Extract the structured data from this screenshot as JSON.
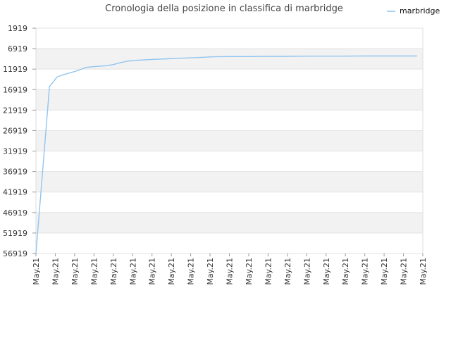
{
  "chart_data": {
    "type": "line",
    "title": "Cronologia della posizione in classifica di marbridge",
    "xlabel": "",
    "ylabel": "",
    "y_inverted": true,
    "ylim": [
      56919,
      1919
    ],
    "y_ticks": [
      "1919",
      "6919",
      "11919",
      "16919",
      "21919",
      "26919",
      "31919",
      "36919",
      "41919",
      "46919",
      "51919",
      "56919"
    ],
    "x_tick_labels": [
      "May.21",
      "May.21",
      "May.21",
      "May.21",
      "May.21",
      "May.21",
      "May.21",
      "May.21",
      "May.21",
      "May.21",
      "May.21",
      "May.21",
      "May.21",
      "May.21",
      "May.21",
      "May.21",
      "May.21",
      "May.21",
      "May.21",
      "May.21",
      "May.21"
    ],
    "x_range": [
      0,
      20
    ],
    "grid": true,
    "legend_position": "top-right",
    "line_color": "#92c5f0",
    "band_color": "#f2f2f2",
    "series": [
      {
        "name": "marbridge",
        "x": [
          0,
          0.7,
          1.1,
          1.4,
          2.0,
          2.6,
          3.0,
          3.6,
          4.0,
          4.4,
          4.7,
          5.0,
          5.4,
          5.8,
          6.3,
          6.8,
          7.2,
          7.7,
          8.3,
          9.2,
          10.0,
          11.0,
          12.0,
          13.0,
          14.0,
          15.0,
          16.0,
          17.0,
          18.0,
          19.0,
          19.7
        ],
        "values": [
          56919,
          16200,
          13800,
          13300,
          12500,
          11500,
          11300,
          11100,
          10800,
          10300,
          10000,
          9800,
          9700,
          9600,
          9500,
          9400,
          9300,
          9200,
          9100,
          8900,
          8850,
          8850,
          8800,
          8800,
          8750,
          8750,
          8750,
          8700,
          8700,
          8700,
          8700
        ]
      }
    ]
  }
}
